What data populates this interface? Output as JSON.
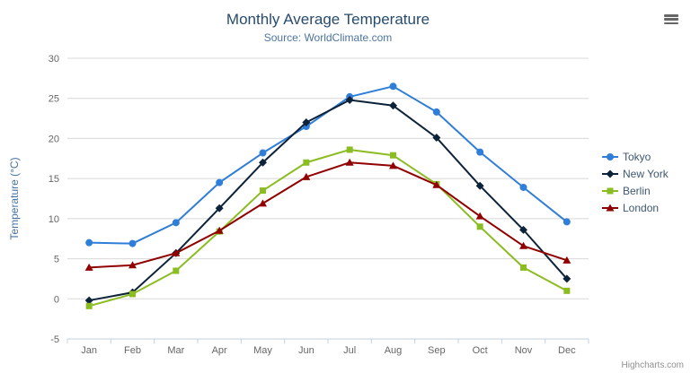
{
  "title": "Monthly Average Temperature",
  "subtitle": "Source: WorldClimate.com",
  "credits": "Highcharts.com",
  "chart_data": {
    "type": "line",
    "title": "Monthly Average Temperature",
    "subtitle": "Source: WorldClimate.com",
    "categories": [
      "Jan",
      "Feb",
      "Mar",
      "Apr",
      "May",
      "Jun",
      "Jul",
      "Aug",
      "Sep",
      "Oct",
      "Nov",
      "Dec"
    ],
    "series": [
      {
        "name": "Tokyo",
        "color": "#2f7ed8",
        "marker": "circle",
        "values": [
          7.0,
          6.9,
          9.5,
          14.5,
          18.2,
          21.5,
          25.2,
          26.5,
          23.3,
          18.3,
          13.9,
          9.6
        ]
      },
      {
        "name": "New York",
        "color": "#0d233a",
        "marker": "diamond",
        "values": [
          -0.2,
          0.8,
          5.7,
          11.3,
          17.0,
          22.0,
          24.8,
          24.1,
          20.1,
          14.1,
          8.6,
          2.5
        ]
      },
      {
        "name": "Berlin",
        "color": "#8bbc21",
        "marker": "square",
        "values": [
          -0.9,
          0.6,
          3.5,
          8.4,
          13.5,
          17.0,
          18.6,
          17.9,
          14.3,
          9.0,
          3.9,
          1.0
        ]
      },
      {
        "name": "London",
        "color": "#910000",
        "marker": "triangle",
        "values": [
          3.9,
          4.2,
          5.7,
          8.5,
          11.9,
          15.2,
          17.0,
          16.6,
          14.2,
          10.3,
          6.6,
          4.8
        ]
      }
    ],
    "xlabel": "",
    "ylabel": "Temperature (°C)",
    "ylim": [
      -5,
      30
    ],
    "ytick_step": 5,
    "grid": true,
    "legend_position": "right"
  }
}
